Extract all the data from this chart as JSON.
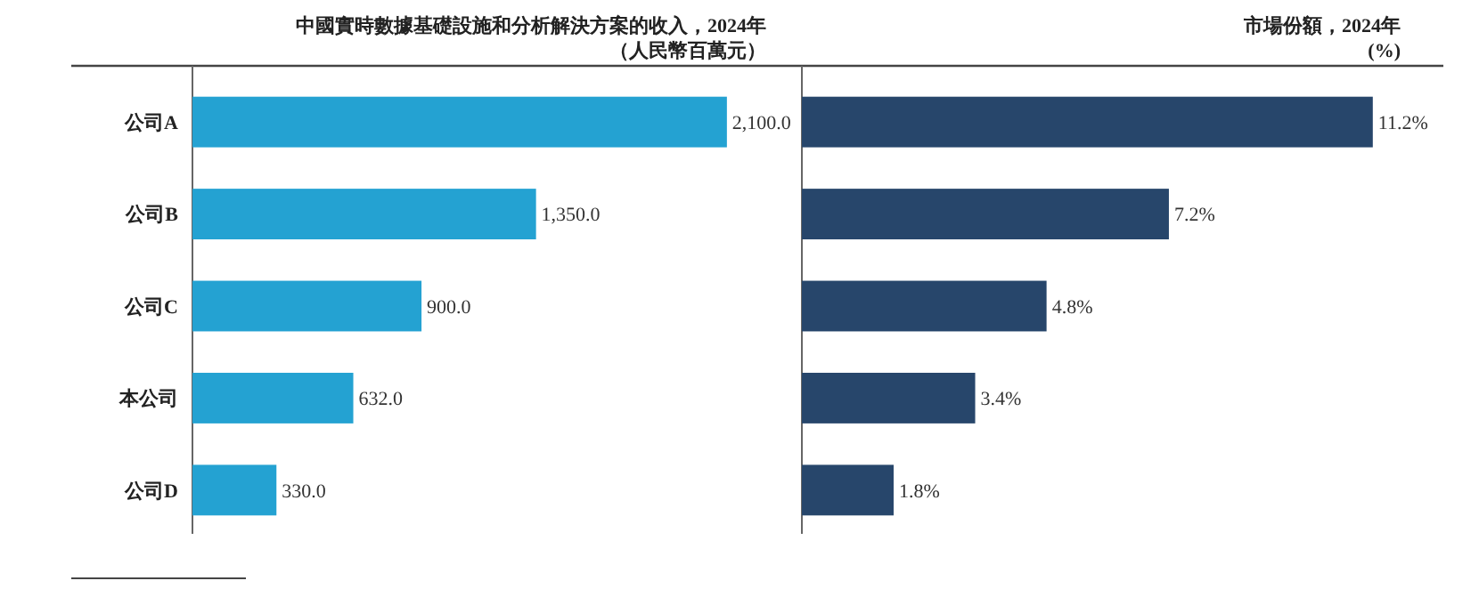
{
  "chart_data": [
    {
      "type": "bar",
      "orientation": "horizontal",
      "title": "中國實時數據基礎設施和分析解決方案的收入，2024年",
      "subtitle": "（人民幣百萬元）",
      "categories": [
        "公司A",
        "公司B",
        "公司C",
        "本公司",
        "公司D"
      ],
      "values": [
        2100,
        1350,
        900,
        632,
        330
      ],
      "value_labels": [
        "2,100.0",
        "1,350.0",
        "900.0",
        "632.0",
        "330.0"
      ],
      "color": "#24a2d2"
    },
    {
      "type": "bar",
      "orientation": "horizontal",
      "title": "市場份額，2024年",
      "subtitle": "(%)",
      "categories": [
        null,
        null,
        null,
        null,
        null
      ],
      "values": [
        11.2,
        7.2,
        4.8,
        3.4,
        1.8
      ],
      "value_labels": [
        "11.2%",
        "7.2%",
        "4.8%",
        "3.4%",
        "1.8%"
      ],
      "color": "#27466b"
    }
  ]
}
